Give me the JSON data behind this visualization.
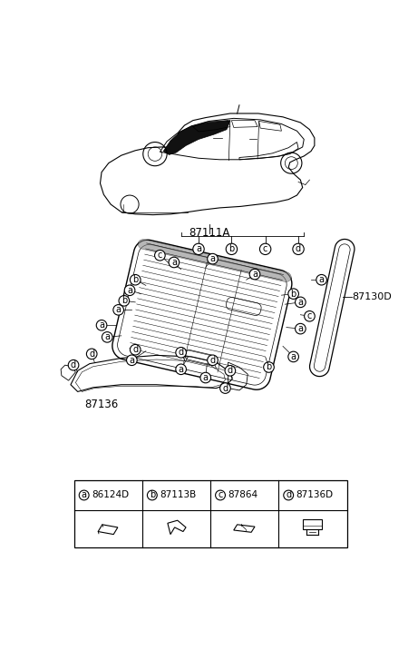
{
  "bg_color": "#ffffff",
  "part_numbers": {
    "car": "87111A",
    "glass": "87130D",
    "moulding": "87136"
  },
  "letters": [
    "a",
    "b",
    "c",
    "d"
  ],
  "codes": [
    "86124D",
    "87113B",
    "87864",
    "87136D"
  ],
  "line_color": "#000000"
}
